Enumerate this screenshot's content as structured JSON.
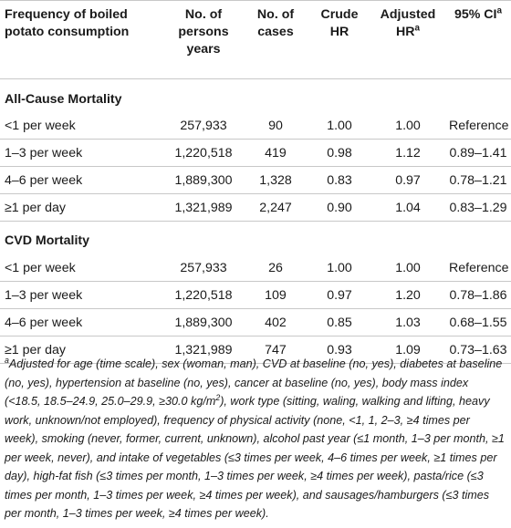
{
  "table": {
    "headers": {
      "frequency": "Frequency of boiled potato consumption",
      "persons_years": "No. of persons years",
      "cases": "No. of cases",
      "crude_hr": "Crude HR",
      "adjusted_hr": "Adjusted HR",
      "adjusted_hr_sup": "a",
      "ci": "95% CI",
      "ci_sup": "a"
    },
    "sections": [
      {
        "title": "All-Cause Mortality",
        "rows": [
          {
            "frequency": "<1 per week",
            "persons_years": "257,933",
            "cases": "90",
            "crude_hr": "1.00",
            "adjusted_hr": "1.00",
            "ci": "Reference"
          },
          {
            "frequency": "1–3 per week",
            "persons_years": "1,220,518",
            "cases": "419",
            "crude_hr": "0.98",
            "adjusted_hr": "1.12",
            "ci": "0.89–1.41"
          },
          {
            "frequency": "4–6 per week",
            "persons_years": "1,889,300",
            "cases": "1,328",
            "crude_hr": "0.83",
            "adjusted_hr": "0.97",
            "ci": "0.78–1.21"
          },
          {
            "frequency": "≥1 per day",
            "persons_years": "1,321,989",
            "cases": "2,247",
            "crude_hr": "0.90",
            "adjusted_hr": "1.04",
            "ci": "0.83–1.29"
          }
        ]
      },
      {
        "title": "CVD Mortality",
        "rows": [
          {
            "frequency": "<1 per week",
            "persons_years": "257,933",
            "cases": "26",
            "crude_hr": "1.00",
            "adjusted_hr": "1.00",
            "ci": "Reference"
          },
          {
            "frequency": "1–3 per week",
            "persons_years": "1,220,518",
            "cases": "109",
            "crude_hr": "0.97",
            "adjusted_hr": "1.20",
            "ci": "0.78–1.86"
          },
          {
            "frequency": "4–6 per week",
            "persons_years": "1,889,300",
            "cases": "402",
            "crude_hr": "0.85",
            "adjusted_hr": "1.03",
            "ci": "0.68–1.55"
          },
          {
            "frequency": "≥1 per day",
            "persons_years": "1,321,989",
            "cases": "747",
            "crude_hr": "0.93",
            "adjusted_hr": "1.09",
            "ci": "0.73–1.63"
          }
        ]
      }
    ]
  },
  "footnote": {
    "marker": "a",
    "text_before_sup": "Adjusted for age (time scale), sex (woman, man), CVD at baseline (no, yes), diabetes at baseline (no, yes), hypertension at baseline (no, yes), cancer at baseline (no, yes), body mass index (<18.5, 18.5–24.9, 25.0–29.9, ≥30.0 kg/m",
    "sup": "2",
    "text_after_sup": "), work type (sitting, waling, walking and lifting, heavy work, unknown/not employed), frequency of physical activity (none, <1, 1, 2–3, ≥4 times per week), smoking (never, former, current, unknown), alcohol past year (≤1 month, 1–3 per month, ≥1 per week, never), and intake of vegetables (≤3 times per week, 4–6 times per week, ≥1 times per day), high-fat fish (≤3 times per month, 1–3 times per week, ≥4 times per week), pasta/rice (≤3 times per month, 1–3 times per week, ≥4 times per week), and sausages/hamburgers (≤3 times per month, 1–3 times per week, ≥4 times per week)."
  }
}
